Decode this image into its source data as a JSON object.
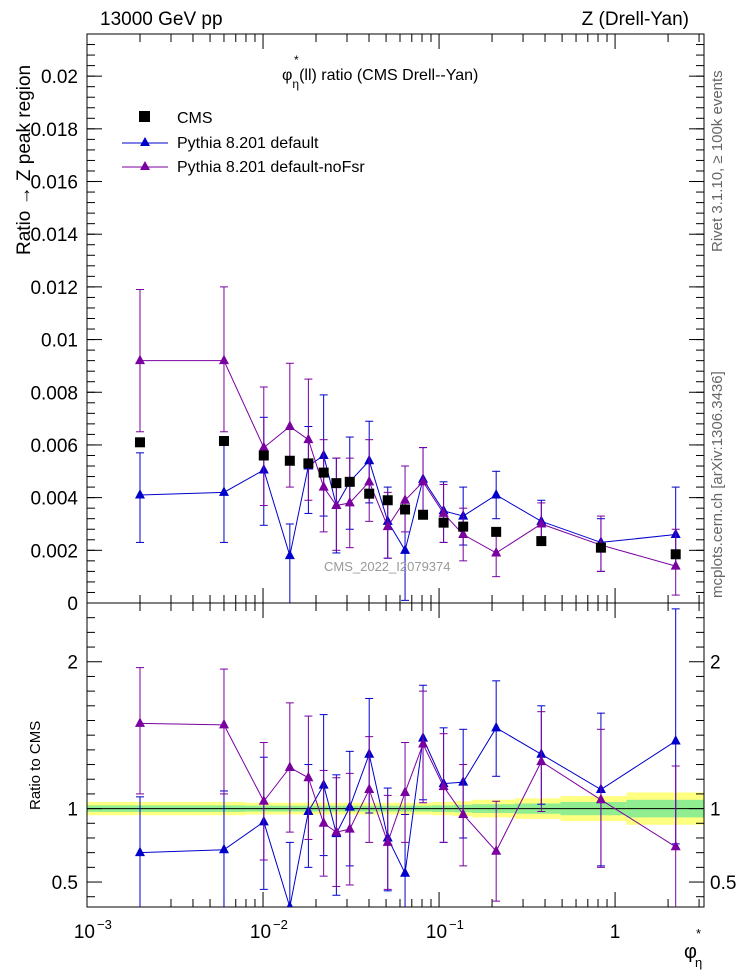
{
  "header": {
    "left": "13000 GeV pp",
    "right": "Z (Drell-Yan)"
  },
  "side_labels": {
    "rivet": "Rivet 3.1.10, ≥ 100k events",
    "mcplots": "mcplots.cern.ch [arXiv:1306.3436]"
  },
  "chart_data": {
    "type": "scatter",
    "title": "φ*η(ll) ratio (CMS Drell--Yan)",
    "title_parts": {
      "phi": "φ",
      "star": "*",
      "eta": "η",
      "rest": "(ll) ratio (CMS Drell--Yan)"
    },
    "watermark": "CMS_2022_I2079374",
    "x_scale": "log",
    "xlim": [
      0.001,
      3.2
    ],
    "x_ticks": [
      {
        "value": 0.001,
        "base": "10",
        "exp": "−3"
      },
      {
        "value": 0.01,
        "base": "10",
        "exp": "−2"
      },
      {
        "value": 0.1,
        "base": "10",
        "exp": "−1"
      },
      {
        "value": 1,
        "base": "1",
        "exp": ""
      }
    ],
    "xlabel": {
      "phi": "φ",
      "star": "*",
      "eta": "η"
    },
    "main_panel": {
      "ylabel": "Ratio → Z peak region",
      "ylim": [
        0,
        0.0216
      ],
      "y_ticks": [
        {
          "value": 0,
          "label": "0"
        },
        {
          "value": 0.002,
          "label": "0.002"
        },
        {
          "value": 0.004,
          "label": "0.004"
        },
        {
          "value": 0.006,
          "label": "0.006"
        },
        {
          "value": 0.008,
          "label": "0.008"
        },
        {
          "value": 0.01,
          "label": "0.01"
        },
        {
          "value": 0.012,
          "label": "0.012"
        },
        {
          "value": 0.014,
          "label": "0.014"
        },
        {
          "value": 0.016,
          "label": "0.016"
        },
        {
          "value": 0.018,
          "label": "0.018"
        },
        {
          "value": 0.02,
          "label": "0.02"
        }
      ]
    },
    "ratio_panel": {
      "ylabel": "Ratio to CMS",
      "ylim": [
        0.33,
        2.4
      ],
      "y_ticks": [
        {
          "value": 0.5,
          "label": "0.5"
        },
        {
          "value": 1,
          "label": "1"
        },
        {
          "value": 2,
          "label": "2"
        }
      ]
    },
    "legend": {
      "placement": "top-left"
    },
    "x": [
      0.002,
      0.006,
      0.0101,
      0.0142,
      0.0181,
      0.0221,
      0.0261,
      0.0311,
      0.0401,
      0.0511,
      0.0641,
      0.0811,
      0.1061,
      0.1371,
      0.2111,
      0.381,
      0.831,
      2.21
    ],
    "series": [
      {
        "name": "CMS",
        "color": "#000000",
        "marker": "square",
        "values": [
          0.0061,
          0.00615,
          0.0056,
          0.0054,
          0.0053,
          0.00495,
          0.00455,
          0.0046,
          0.00415,
          0.0039,
          0.00355,
          0.00335,
          0.00305,
          0.0029,
          0.0027,
          0.00235,
          0.0021,
          0.00185
        ]
      },
      {
        "name": "Pythia 8.201 default",
        "color": "#0000cc",
        "marker": "triangle",
        "values": [
          0.0041,
          0.0042,
          0.00505,
          0.0018,
          0.0052,
          0.0056,
          0.0037,
          0.0046,
          0.0054,
          0.0031,
          0.002,
          0.0047,
          0.0035,
          0.0033,
          0.0041,
          0.0031,
          0.0023,
          0.0026
        ],
        "err_low": [
          0.0018,
          0.0019,
          0.0021,
          0.0025,
          0.0018,
          0.0023,
          0.0018,
          0.0018,
          0.0016,
          0.0014,
          0.0019,
          0.0013,
          0.0012,
          0.0011,
          0.0009,
          0.0008,
          0.0011,
          0.0013
        ],
        "err_high": [
          0.0016,
          0.0018,
          0.002,
          0.0012,
          0.0015,
          0.0023,
          0.0018,
          0.0017,
          0.0015,
          0.0013,
          0.0014,
          0.0012,
          0.0011,
          0.0011,
          0.0009,
          0.0008,
          0.0009,
          0.0018
        ],
        "ratio": [
          0.7,
          0.72,
          0.91,
          0.33,
          0.98,
          1.16,
          0.83,
          1.01,
          1.37,
          0.8,
          0.56,
          1.48,
          1.17,
          1.18,
          1.55,
          1.37,
          1.13,
          1.46
        ],
        "ratio_err_low": [
          0.4,
          0.42,
          0.46,
          0.5,
          0.38,
          0.48,
          0.42,
          0.4,
          0.4,
          0.36,
          0.5,
          0.42,
          0.4,
          0.38,
          0.33,
          0.34,
          0.52,
          0.7
        ],
        "ratio_err_high": [
          0.38,
          0.4,
          0.44,
          0.44,
          0.32,
          0.48,
          0.4,
          0.38,
          0.38,
          0.34,
          0.4,
          0.36,
          0.38,
          0.36,
          0.32,
          0.33,
          0.52,
          0.9
        ]
      },
      {
        "name": "Pythia 8.201 default-noFsr",
        "color": "#7b00a0",
        "marker": "triangle",
        "values": [
          0.0092,
          0.0092,
          0.0059,
          0.0067,
          0.0062,
          0.0044,
          0.0037,
          0.0038,
          0.0046,
          0.0029,
          0.0039,
          0.0046,
          0.0034,
          0.0026,
          0.0019,
          0.003,
          0.0022,
          0.0014
        ],
        "err_low": [
          0.0027,
          0.0027,
          0.0022,
          0.0023,
          0.0023,
          0.0017,
          0.0017,
          0.0017,
          0.0015,
          0.0012,
          0.0012,
          0.0013,
          0.0011,
          0.001,
          0.0009,
          0.0008,
          0.001,
          0.0011
        ],
        "err_high": [
          0.0027,
          0.0028,
          0.0023,
          0.0024,
          0.0023,
          0.0018,
          0.0018,
          0.0017,
          0.0016,
          0.0013,
          0.0013,
          0.0013,
          0.0011,
          0.001,
          0.0009,
          0.0008,
          0.0011,
          0.0014
        ],
        "ratio": [
          1.58,
          1.57,
          1.05,
          1.28,
          1.21,
          0.9,
          0.84,
          0.86,
          1.13,
          0.77,
          1.11,
          1.44,
          1.15,
          0.96,
          0.71,
          1.32,
          1.06,
          0.74
        ],
        "ratio_err_low": [
          0.48,
          0.47,
          0.4,
          0.44,
          0.42,
          0.36,
          0.37,
          0.38,
          0.36,
          0.32,
          0.34,
          0.4,
          0.38,
          0.35,
          0.34,
          0.34,
          0.46,
          0.52
        ],
        "ratio_err_high": [
          0.38,
          0.38,
          0.4,
          0.44,
          0.42,
          0.36,
          0.37,
          0.38,
          0.36,
          0.32,
          0.34,
          0.36,
          0.36,
          0.34,
          0.34,
          0.34,
          0.48,
          0.55
        ]
      }
    ],
    "cms_uncertainty_band": {
      "x_edges": [
        0.001,
        0.004,
        0.008,
        0.012,
        0.016,
        0.02,
        0.024,
        0.028,
        0.035,
        0.045,
        0.057,
        0.072,
        0.091,
        0.121,
        0.153,
        0.27,
        0.49,
        1.16,
        3.2
      ],
      "green_half_width": [
        0.022,
        0.022,
        0.02,
        0.02,
        0.02,
        0.02,
        0.02,
        0.02,
        0.02,
        0.02,
        0.02,
        0.02,
        0.022,
        0.025,
        0.03,
        0.035,
        0.045,
        0.06
      ],
      "yellow_half_width": [
        0.045,
        0.045,
        0.04,
        0.04,
        0.04,
        0.04,
        0.04,
        0.04,
        0.04,
        0.04,
        0.04,
        0.04,
        0.045,
        0.05,
        0.06,
        0.07,
        0.085,
        0.11
      ],
      "green_color": "#90ee90",
      "yellow_color": "#ffff80"
    }
  }
}
